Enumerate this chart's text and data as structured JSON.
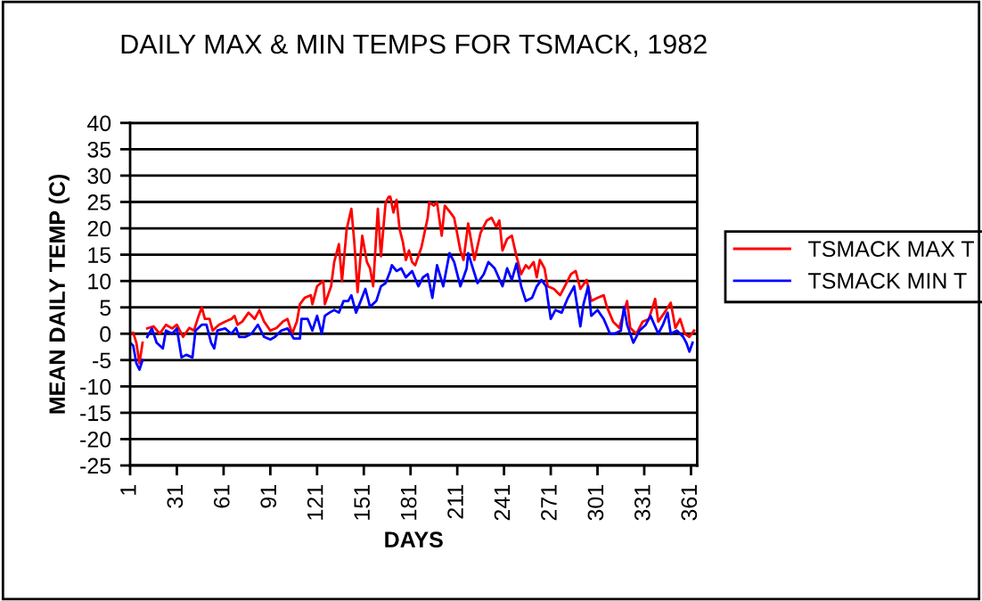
{
  "chart_data": {
    "type": "line",
    "title": "DAILY MAX & MIN TEMPS FOR TSMACK, 1982",
    "xlabel": "DAYS",
    "ylabel": "MEAN DAILY TEMP (C)",
    "xlim": [
      1,
      365
    ],
    "xticks": [
      1,
      31,
      61,
      91,
      121,
      151,
      181,
      211,
      241,
      271,
      301,
      331,
      361
    ],
    "ylim": [
      -25,
      40
    ],
    "yticks": [
      -25,
      -20,
      -15,
      -10,
      -5,
      0,
      5,
      10,
      15,
      20,
      25,
      30,
      35,
      40
    ],
    "grid": "y",
    "legend": "right",
    "marker": "none",
    "line_style": "solid",
    "series": [
      {
        "name": "TSMACK MAX T",
        "color": "#ff0000",
        "x": [
          1,
          3,
          5,
          7,
          9,
          10,
          12,
          16,
          20,
          24,
          28,
          31,
          35,
          39,
          42,
          45,
          47,
          49,
          52,
          54,
          58,
          62,
          66,
          68,
          70,
          73,
          77,
          81,
          84,
          87,
          91,
          95,
          99,
          102,
          105,
          108,
          110,
          113,
          117,
          118,
          121,
          125,
          126,
          130,
          132,
          135,
          137,
          140,
          143,
          145,
          147,
          150,
          153,
          155,
          157,
          160,
          162,
          165,
          167,
          168,
          170,
          172,
          174,
          176,
          178,
          180,
          182,
          184,
          188,
          192,
          193,
          196,
          198,
          201,
          203,
          206,
          209,
          213,
          215,
          218,
          222,
          226,
          230,
          233,
          236,
          238,
          240,
          243,
          246,
          249,
          252,
          255,
          257,
          260,
          262,
          264,
          267,
          269,
          273,
          277,
          280,
          284,
          287,
          290,
          294,
          297,
          301,
          305,
          307,
          311,
          315,
          320,
          322,
          326,
          330,
          334,
          338,
          340,
          344,
          348,
          351,
          354,
          357,
          360,
          363
        ],
        "values": [
          0,
          0.2,
          -1.7,
          -5.6,
          -1.7,
          null,
          1,
          1.4,
          0,
          1.7,
          1,
          1.7,
          -0.6,
          1.1,
          0.6,
          3.4,
          5,
          2.8,
          2.8,
          0.6,
          1.7,
          2.3,
          2.8,
          3.4,
          1.7,
          2.3,
          4,
          2.8,
          4.5,
          2.3,
          0.6,
          1.1,
          2.3,
          2.8,
          0,
          2.3,
          5.6,
          6.8,
          7.3,
          5.6,
          9,
          10,
          5.6,
          9,
          13.6,
          17,
          10,
          19.8,
          23.7,
          17,
          7.9,
          18.6,
          13.6,
          12.4,
          9,
          23.7,
          14.7,
          24.9,
          26,
          26,
          23,
          25.4,
          19.8,
          17.5,
          14,
          15.8,
          13.6,
          13,
          16.4,
          22,
          24.9,
          24.3,
          24.9,
          18.6,
          24.3,
          23.2,
          22,
          15.8,
          14,
          20.9,
          14,
          19.2,
          21.5,
          22,
          20.3,
          21.5,
          15.8,
          18,
          18.6,
          14.7,
          11.3,
          13,
          12.4,
          13.6,
          10.7,
          14,
          12.4,
          9,
          8.5,
          7.3,
          9,
          11.3,
          11.9,
          8.5,
          10.2,
          6.2,
          6.8,
          7.3,
          5.1,
          2.3,
          1.1,
          6.2,
          1.1,
          0,
          2.3,
          2.8,
          6.6,
          2.3,
          4,
          5.9,
          1.1,
          2.8,
          0,
          -0.6,
          0.6
        ]
      },
      {
        "name": "TSMACK MIN T",
        "color": "#0000ff",
        "x": [
          1,
          3,
          5,
          7,
          9,
          10,
          12,
          15,
          18,
          22,
          24,
          28,
          31,
          34,
          37,
          41,
          43,
          47,
          50,
          53,
          55,
          57,
          62,
          66,
          69,
          71,
          75,
          79,
          83,
          87,
          91,
          94,
          98,
          102,
          106,
          110,
          111,
          115,
          118,
          121,
          124,
          126,
          129,
          132,
          135,
          138,
          141,
          143,
          146,
          149,
          152,
          155,
          159,
          162,
          165,
          168,
          169,
          172,
          175,
          178,
          182,
          186,
          189,
          192,
          195,
          198,
          202,
          206,
          209,
          213,
          217,
          218,
          221,
          224,
          228,
          231,
          235,
          240,
          243,
          246,
          249,
          252,
          255,
          259,
          262,
          265,
          268,
          269,
          271,
          274,
          278,
          282,
          286,
          290,
          292,
          295,
          297,
          301,
          305,
          309,
          312,
          316,
          318,
          320,
          324,
          328,
          332,
          335,
          340,
          343,
          346,
          348,
          352,
          356,
          358,
          360,
          362
        ],
        "values": [
          -1.7,
          -2.3,
          -5.6,
          -6.8,
          -5,
          null,
          -0.6,
          1,
          -1.7,
          -2.8,
          0.6,
          0,
          1,
          -4.5,
          -4,
          -4.5,
          0.6,
          1.7,
          1.7,
          -1.7,
          -2.8,
          0.6,
          1,
          0,
          1.1,
          -0.6,
          -0.6,
          0,
          1.7,
          -0.6,
          -1.1,
          -0.6,
          0.6,
          1,
          -0.9,
          -0.9,
          2.8,
          2.8,
          0.6,
          3.4,
          0,
          3.4,
          4,
          4.5,
          4,
          6.2,
          6.2,
          7.3,
          4,
          6.2,
          8.5,
          5.1,
          6.2,
          9,
          9.6,
          11.9,
          13,
          11.9,
          12.4,
          10.7,
          11.9,
          9,
          10.7,
          11.3,
          6.8,
          13,
          9,
          15.3,
          13.6,
          9,
          12.4,
          15.3,
          12.4,
          9.6,
          11.3,
          13.6,
          12.4,
          9,
          12.4,
          10.2,
          13.3,
          9,
          6.2,
          6.8,
          9,
          10.2,
          9,
          6.8,
          2.8,
          4.5,
          4,
          6.8,
          9,
          1.4,
          5.6,
          9,
          3.4,
          4.5,
          2.8,
          0,
          0,
          0.6,
          5.1,
          1.7,
          -1.7,
          0.6,
          1.7,
          3.4,
          0,
          1.7,
          4,
          0,
          0.6,
          -0.6,
          -1.7,
          -3.4,
          -1.7
        ]
      }
    ]
  }
}
